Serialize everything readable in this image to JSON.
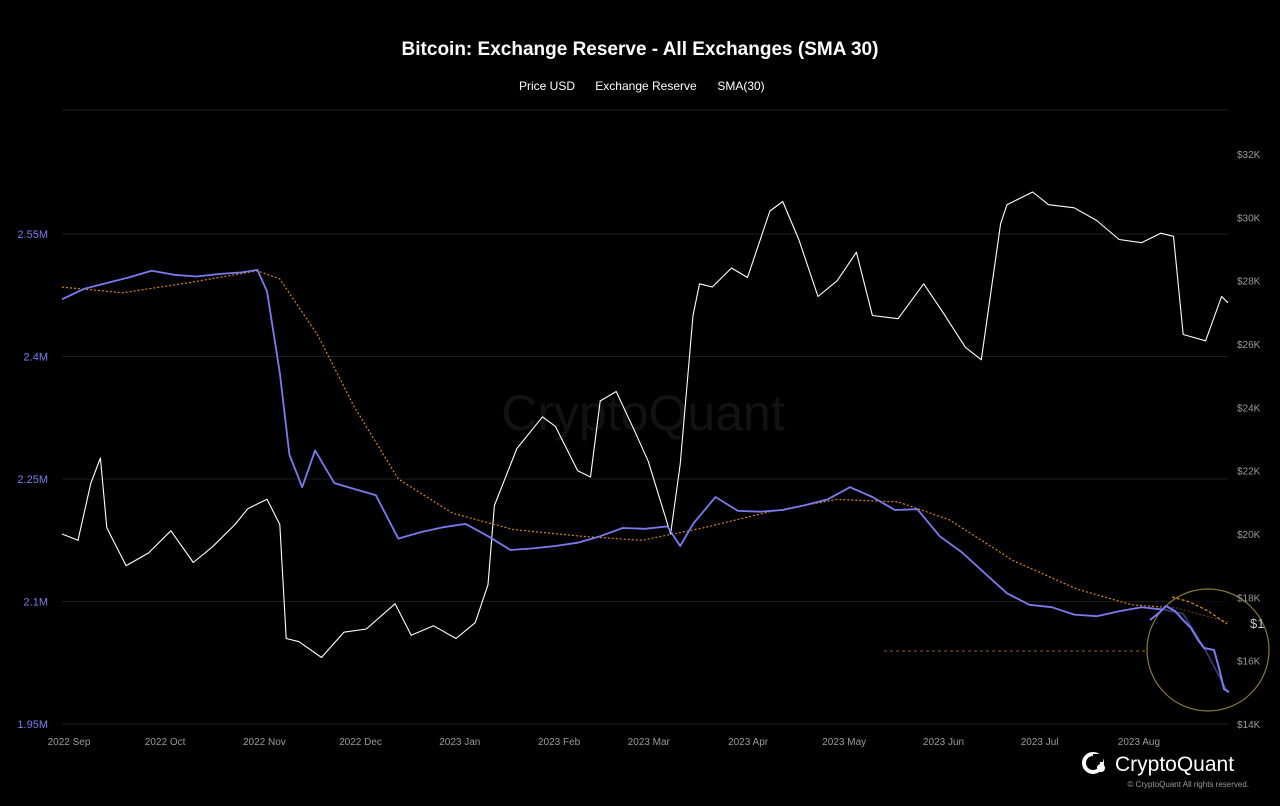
{
  "chart_data": {
    "type": "line",
    "title": "Bitcoin: Exchange Reserve - All Exchanges (SMA 30)",
    "legend": [
      {
        "name": "Price USD",
        "color": "#ffffff"
      },
      {
        "name": "Exchange Reserve",
        "color": "#7b7bf0"
      },
      {
        "name": "SMA(30)",
        "color": "#d9860b"
      }
    ],
    "legend_placement": "top-center",
    "grid": true,
    "x_ticks": [
      "2022 Sep",
      "2022 Oct",
      "2022 Nov",
      "2022 Dec",
      "2023 Jan",
      "2023 Feb",
      "2023 Mar",
      "2023 Apr",
      "2023 May",
      "2023 Jun",
      "2023 Jul",
      "2023 Aug"
    ],
    "y_left": {
      "ticks": [
        "1.95M",
        "2.1M",
        "2.25M",
        "2.4M",
        "2.55M"
      ],
      "range": [
        1950000,
        2550000
      ],
      "color": "#7b7bf0"
    },
    "y_right": {
      "ticks": [
        "$14K",
        "$16K",
        "$18K",
        "$20K",
        "$22K",
        "$24K",
        "$26K",
        "$28K",
        "$30K",
        "$32K"
      ],
      "range": [
        14000,
        32000
      ]
    },
    "x_range": [
      "2022-09-01",
      "2023-08-31"
    ],
    "series": [
      {
        "name": "Exchange Reserve",
        "axis": "left",
        "color": "#7b7bf0",
        "x": [
          "2022-09-01",
          "2022-09-08",
          "2022-09-15",
          "2022-09-22",
          "2022-09-29",
          "2022-10-06",
          "2022-10-13",
          "2022-10-20",
          "2022-10-27",
          "2022-11-01",
          "2022-11-04",
          "2022-11-08",
          "2022-11-11",
          "2022-11-15",
          "2022-11-19",
          "2022-11-25",
          "2022-12-01",
          "2022-12-08",
          "2022-12-15",
          "2022-12-22",
          "2022-12-29",
          "2023-01-05",
          "2023-01-12",
          "2023-01-19",
          "2023-01-26",
          "2023-02-02",
          "2023-02-09",
          "2023-02-16",
          "2023-02-23",
          "2023-03-02",
          "2023-03-09",
          "2023-03-13",
          "2023-03-17",
          "2023-03-24",
          "2023-03-31",
          "2023-04-07",
          "2023-04-14",
          "2023-04-21",
          "2023-04-28",
          "2023-05-05",
          "2023-05-12",
          "2023-05-19",
          "2023-05-26",
          "2023-06-02",
          "2023-06-09",
          "2023-06-16",
          "2023-06-23",
          "2023-06-30",
          "2023-07-07",
          "2023-07-14",
          "2023-07-21",
          "2023-07-28",
          "2023-08-04",
          "2023-08-11",
          "2023-08-17",
          "2023-08-24",
          "2023-08-31"
        ],
        "values": [
          2470000,
          2483000,
          2490000,
          2497000,
          2505000,
          2500000,
          2498000,
          2501000,
          2503000,
          2506000,
          2480000,
          2380000,
          2280000,
          2240000,
          2285000,
          2245000,
          2238000,
          2230000,
          2177000,
          2185000,
          2191000,
          2195000,
          2180000,
          2163000,
          2165000,
          2168000,
          2172000,
          2180000,
          2190000,
          2189000,
          2192000,
          2168000,
          2195000,
          2228000,
          2211000,
          2210000,
          2212000,
          2218000,
          2225000,
          2240000,
          2228000,
          2212000,
          2213000,
          2180000,
          2160000,
          2135000,
          2110000,
          2096000,
          2093000,
          2084000,
          2082000,
          2088000,
          2093000,
          2090000,
          2085000,
          2040000,
          1988000
        ]
      },
      {
        "name": "SMA(30)",
        "axis": "left",
        "color": "#d9860b",
        "x": [
          "2022-09-01",
          "2022-09-20",
          "2022-10-10",
          "2022-11-01",
          "2022-11-08",
          "2022-11-20",
          "2022-12-01",
          "2022-12-15",
          "2023-01-01",
          "2023-01-20",
          "2023-02-10",
          "2023-03-01",
          "2023-03-20",
          "2023-04-10",
          "2023-05-01",
          "2023-05-20",
          "2023-06-05",
          "2023-06-25",
          "2023-07-15",
          "2023-08-01",
          "2023-08-15",
          "2023-08-31"
        ],
        "values": [
          2485000,
          2478000,
          2490000,
          2505000,
          2495000,
          2425000,
          2340000,
          2250000,
          2208000,
          2188000,
          2180000,
          2175000,
          2190000,
          2210000,
          2225000,
          2222000,
          2200000,
          2150000,
          2115000,
          2096000,
          2092000,
          2075000
        ]
      },
      {
        "name": "Price USD",
        "axis": "right",
        "color": "#ffffff",
        "x": [
          "2022-09-01",
          "2022-09-06",
          "2022-09-10",
          "2022-09-13",
          "2022-09-15",
          "2022-09-21",
          "2022-09-28",
          "2022-10-05",
          "2022-10-12",
          "2022-10-18",
          "2022-10-25",
          "2022-10-29",
          "2022-11-04",
          "2022-11-08",
          "2022-11-10",
          "2022-11-14",
          "2022-11-21",
          "2022-11-28",
          "2022-12-05",
          "2022-12-14",
          "2022-12-19",
          "2022-12-26",
          "2023-01-02",
          "2023-01-08",
          "2023-01-12",
          "2023-01-14",
          "2023-01-21",
          "2023-01-29",
          "2023-02-02",
          "2023-02-09",
          "2023-02-13",
          "2023-02-16",
          "2023-02-21",
          "2023-02-27",
          "2023-03-03",
          "2023-03-10",
          "2023-03-13",
          "2023-03-17",
          "2023-03-19",
          "2023-03-23",
          "2023-03-29",
          "2023-04-03",
          "2023-04-10",
          "2023-04-14",
          "2023-04-19",
          "2023-04-25",
          "2023-05-01",
          "2023-05-07",
          "2023-05-12",
          "2023-05-20",
          "2023-05-28",
          "2023-06-03",
          "2023-06-10",
          "2023-06-15",
          "2023-06-21",
          "2023-06-23",
          "2023-07-01",
          "2023-07-06",
          "2023-07-14",
          "2023-07-21",
          "2023-07-28",
          "2023-08-04",
          "2023-08-10",
          "2023-08-14",
          "2023-08-17",
          "2023-08-24",
          "2023-08-29",
          "2023-08-31"
        ],
        "values": [
          20000,
          19800,
          21600,
          22400,
          20200,
          19000,
          19400,
          20100,
          19100,
          19600,
          20300,
          20800,
          21100,
          20300,
          16700,
          16600,
          16100,
          16900,
          17000,
          17800,
          16800,
          17100,
          16700,
          17200,
          18400,
          20900,
          22700,
          23700,
          23400,
          22000,
          21800,
          24200,
          24500,
          23200,
          22300,
          20000,
          22200,
          26900,
          27900,
          27800,
          28400,
          28100,
          30200,
          30500,
          29300,
          27500,
          28000,
          28900,
          26900,
          26800,
          27900,
          27000,
          25900,
          25500,
          29800,
          30400,
          30800,
          30400,
          30300,
          29900,
          29300,
          29200,
          29500,
          29400,
          26300,
          26100,
          27500,
          27300
        ]
      }
    ],
    "annotation": {
      "label": "$1"
    }
  },
  "branding": {
    "watermark": "CryptoQuant",
    "logo_text": "CryptoQuant",
    "copyright": "© CryptoQuant All rights reserved."
  }
}
